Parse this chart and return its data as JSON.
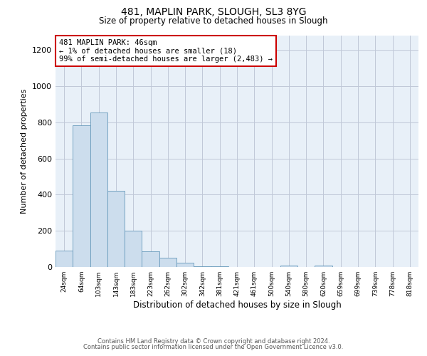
{
  "title": "481, MAPLIN PARK, SLOUGH, SL3 8YG",
  "subtitle": "Size of property relative to detached houses in Slough",
  "xlabel": "Distribution of detached houses by size in Slough",
  "ylabel": "Number of detached properties",
  "bar_color": "#ccdded",
  "bar_edge_color": "#6699bb",
  "background_color": "#ffffff",
  "plot_bg_color": "#e8f0f8",
  "grid_color": "#c0c8d8",
  "annotation_box_color": "#ffffff",
  "annotation_box_edge": "#cc0000",
  "annotation_line1": "481 MAPLIN PARK: 46sqm",
  "annotation_line2": "← 1% of detached houses are smaller (18)",
  "annotation_line3": "99% of semi-detached houses are larger (2,483) →",
  "categories": [
    "24sqm",
    "64sqm",
    "103sqm",
    "143sqm",
    "183sqm",
    "223sqm",
    "262sqm",
    "302sqm",
    "342sqm",
    "381sqm",
    "421sqm",
    "461sqm",
    "500sqm",
    "540sqm",
    "580sqm",
    "620sqm",
    "659sqm",
    "699sqm",
    "739sqm",
    "778sqm",
    "818sqm"
  ],
  "values": [
    90,
    785,
    855,
    420,
    200,
    85,
    52,
    22,
    5,
    2,
    0,
    0,
    0,
    8,
    0,
    8,
    0,
    0,
    0,
    0,
    0
  ],
  "ylim": [
    0,
    1280
  ],
  "yticks": [
    0,
    200,
    400,
    600,
    800,
    1000,
    1200
  ],
  "footnote1": "Contains HM Land Registry data © Crown copyright and database right 2024.",
  "footnote2": "Contains public sector information licensed under the Open Government Licence v3.0."
}
